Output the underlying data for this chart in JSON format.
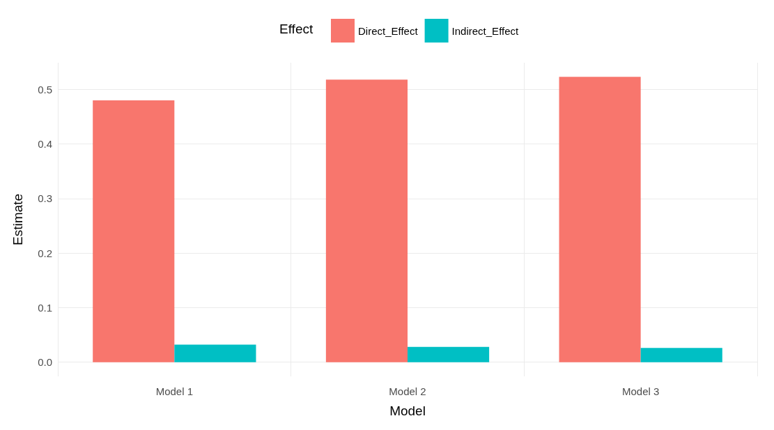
{
  "chart_data": {
    "type": "bar",
    "xlabel": "Model",
    "ylabel": "Estimate",
    "legend_title": "Effect",
    "categories": [
      "Model 1",
      "Model 2",
      "Model 3"
    ],
    "series": [
      {
        "name": "Direct_Effect",
        "color": "#f8766d",
        "values": [
          0.48,
          0.518,
          0.523
        ]
      },
      {
        "name": "Indirect_Effect",
        "color": "#00bfc4",
        "values": [
          0.032,
          0.028,
          0.026
        ]
      }
    ],
    "ylim": [
      -0.026,
      0.549
    ],
    "yticks": [
      {
        "value": 0,
        "label": "0.0"
      },
      0.1,
      0.2,
      0.3,
      0.4,
      0.5
    ],
    "grid": true,
    "legend": "top"
  }
}
